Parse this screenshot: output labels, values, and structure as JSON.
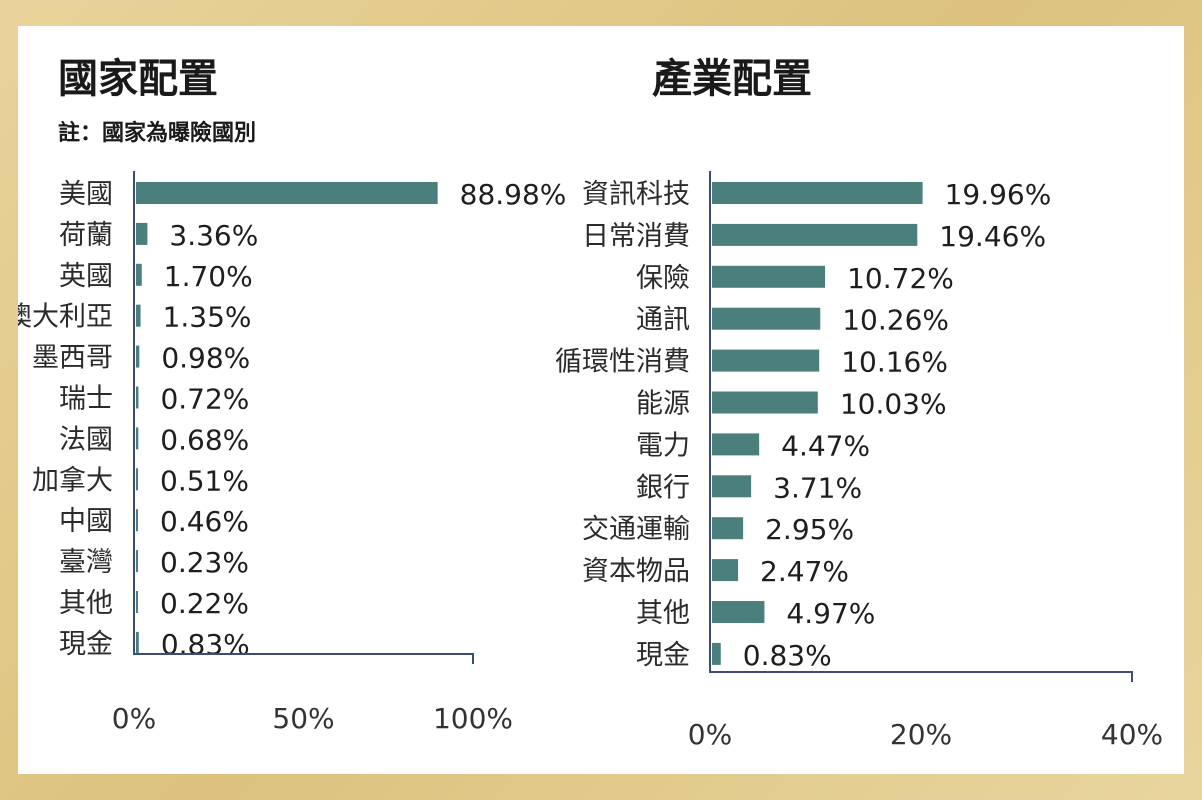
{
  "chart_data": [
    {
      "type": "bar",
      "orientation": "horizontal",
      "title": "國家配置",
      "note": "註：國家為曝險國別",
      "categories": [
        "美國",
        "荷蘭",
        "英國",
        "澳大利亞",
        "墨西哥",
        "瑞士",
        "法國",
        "加拿大",
        "中國",
        "臺灣",
        "其他",
        "現金"
      ],
      "values": [
        88.98,
        3.36,
        1.7,
        1.35,
        0.98,
        0.72,
        0.68,
        0.51,
        0.46,
        0.23,
        0.22,
        0.83
      ],
      "value_labels": [
        "88.98%",
        "3.36%",
        "1.70%",
        "1.35%",
        "0.98%",
        "0.72%",
        "0.68%",
        "0.51%",
        "0.46%",
        "0.23%",
        "0.22%",
        "0.83%"
      ],
      "xlim": [
        0,
        100
      ],
      "ticks": [
        0,
        50,
        100
      ],
      "tick_labels": [
        "0%",
        "50%",
        "100%"
      ],
      "bar_color": "#4a7f7c",
      "grid": false
    },
    {
      "type": "bar",
      "orientation": "horizontal",
      "title": "產業配置",
      "categories": [
        "資訊科技",
        "日常消費",
        "保險",
        "通訊",
        "循環性消費",
        "能源",
        "電力",
        "銀行",
        "交通運輸",
        "資本物品",
        "其他",
        "現金"
      ],
      "values": [
        19.96,
        19.46,
        10.72,
        10.26,
        10.16,
        10.03,
        4.47,
        3.71,
        2.95,
        2.47,
        4.97,
        0.83
      ],
      "value_labels": [
        "19.96%",
        "19.46%",
        "10.72%",
        "10.26%",
        "10.16%",
        "10.03%",
        "4.47%",
        "3.71%",
        "2.95%",
        "2.47%",
        "4.97%",
        "0.83%"
      ],
      "xlim": [
        0,
        40
      ],
      "ticks": [
        0,
        20,
        40
      ],
      "tick_labels": [
        "0%",
        "20%",
        "40%"
      ],
      "bar_color": "#4a7f7c",
      "grid": false
    }
  ]
}
